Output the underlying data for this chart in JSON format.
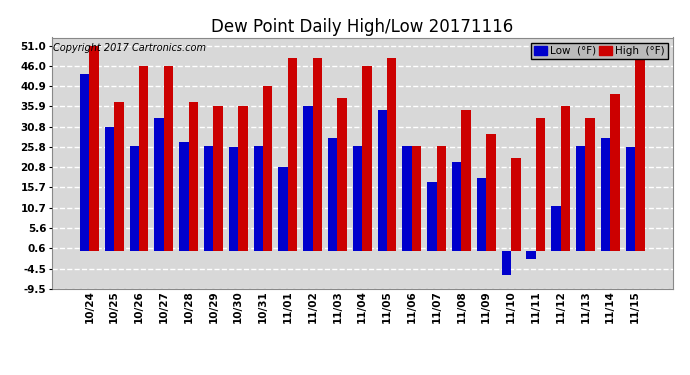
{
  "title": "Dew Point Daily High/Low 20171116",
  "copyright": "Copyright 2017 Cartronics.com",
  "dates": [
    "10/24",
    "10/25",
    "10/26",
    "10/27",
    "10/28",
    "10/29",
    "10/30",
    "10/31",
    "11/01",
    "11/02",
    "11/03",
    "11/04",
    "11/05",
    "11/06",
    "11/07",
    "11/08",
    "11/09",
    "11/10",
    "11/11",
    "11/12",
    "11/13",
    "11/14",
    "11/15"
  ],
  "high": [
    51.0,
    37.0,
    46.0,
    46.0,
    37.0,
    35.9,
    35.9,
    40.9,
    48.0,
    48.0,
    38.0,
    46.0,
    48.0,
    26.0,
    26.0,
    35.0,
    29.0,
    23.0,
    33.0,
    35.9,
    33.0,
    39.0,
    48.0
  ],
  "low": [
    44.0,
    30.8,
    26.0,
    33.0,
    27.0,
    26.0,
    25.8,
    26.0,
    20.8,
    35.9,
    28.0,
    26.0,
    35.0,
    26.0,
    17.0,
    22.0,
    18.0,
    -6.0,
    -2.0,
    11.0,
    26.0,
    28.0,
    25.8
  ],
  "ylim_min": -9.5,
  "ylim_max": 53.0,
  "yticks": [
    -9.5,
    -4.5,
    0.6,
    5.6,
    10.7,
    15.7,
    20.8,
    25.8,
    30.8,
    35.9,
    40.9,
    46.0,
    51.0
  ],
  "bar_width": 0.38,
  "low_color": "#0000cc",
  "high_color": "#cc0000",
  "bg_color": "#ffffff",
  "plot_bg_color": "#d8d8d8",
  "grid_color": "#ffffff",
  "title_fontsize": 12,
  "copyright_fontsize": 7,
  "tick_fontsize": 7.5,
  "legend_low_label": "Low  (°F)",
  "legend_high_label": "High  (°F)"
}
